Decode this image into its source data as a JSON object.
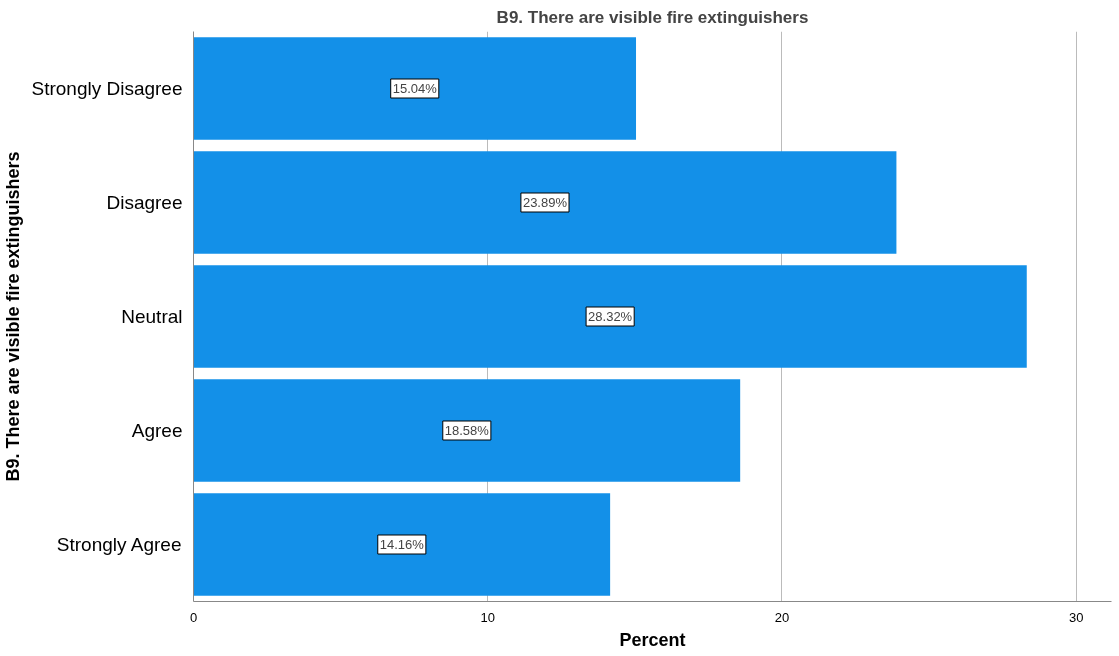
{
  "chart_data": {
    "type": "bar",
    "orientation": "horizontal",
    "title": "B9. There are visible fire extinguishers",
    "xlabel": "Percent",
    "ylabel": "B9. There are visible fire extinguishers",
    "categories": [
      "Strongly Disagree",
      "Disagree",
      "Neutral",
      "Agree",
      "Strongly Agree"
    ],
    "values": [
      15.04,
      23.89,
      28.32,
      18.58,
      14.16
    ],
    "value_labels": [
      "15.04%",
      "23.89%",
      "28.32%",
      "18.58%",
      "14.16%"
    ],
    "color": "#1390e8",
    "xlim": [
      0,
      31.2
    ],
    "xticks": [
      0,
      10,
      20,
      30
    ],
    "grid": "x"
  }
}
